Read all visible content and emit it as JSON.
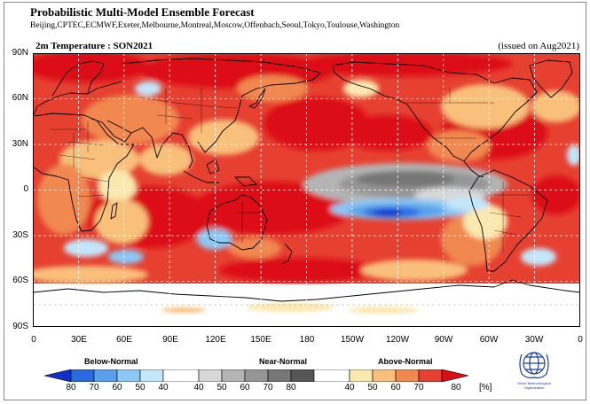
{
  "header": {
    "title": "Probabilistic Multi-Model Ensemble Forecast",
    "centers": "Beijing,CPTEC,ECMWF,Exeter,Melbourne,Montreal,Moscow,Offenbach,Seoul,Tokyo,Toulouse,Washington"
  },
  "panel": {
    "variable_season": "2m Temperature : SON2021",
    "issued": "(issued on Aug2021)"
  },
  "axes": {
    "lat_labels": [
      "90N",
      "60N",
      "30N",
      "0",
      "30S",
      "60S",
      "90S"
    ],
    "lon_labels": [
      "0",
      "30E",
      "60E",
      "90E",
      "120E",
      "150E",
      "180",
      "150W",
      "120W",
      "90W",
      "60W",
      "30W",
      "0"
    ]
  },
  "legend": {
    "below_label": "Below-Normal",
    "near_label": "Near-Normal",
    "above_label": "Above-Normal",
    "below_values": [
      "80",
      "70",
      "60",
      "50",
      "40"
    ],
    "near_values": [
      "40",
      "50",
      "60",
      "70",
      "80"
    ],
    "above_values": [
      "40",
      "50",
      "60",
      "70",
      "80"
    ],
    "unit": "[%]",
    "colors": {
      "below": [
        "#1030c8",
        "#2a6ae0",
        "#58a0ec",
        "#8cc8f4",
        "#c2e6fa"
      ],
      "white": "#ffffff",
      "near": [
        "#d8d8d8",
        "#b4b4b4",
        "#969696",
        "#767676",
        "#565656"
      ],
      "above": [
        "#fbe8ae",
        "#f8c07a",
        "#f08850",
        "#e64030",
        "#dc0c14"
      ]
    }
  },
  "logo": {
    "org_text": "World Meteorological Organization"
  }
}
